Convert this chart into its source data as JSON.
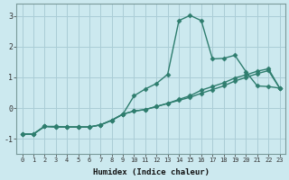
{
  "xlabel": "Humidex (Indice chaleur)",
  "background_color": "#cce9ef",
  "line_color": "#2e7d6e",
  "grid_color": "#aacdd6",
  "xlim": [
    -0.5,
    23.5
  ],
  "ylim": [
    -1.5,
    3.4
  ],
  "yticks": [
    -1,
    0,
    1,
    2,
    3
  ],
  "xticks": [
    0,
    1,
    2,
    3,
    4,
    5,
    6,
    7,
    8,
    9,
    10,
    11,
    12,
    13,
    14,
    15,
    16,
    17,
    18,
    19,
    20,
    21,
    22,
    23
  ],
  "series1_x": [
    0,
    1,
    2,
    3,
    4,
    5,
    6,
    7,
    8,
    9,
    10,
    11,
    12,
    13,
    14,
    15,
    16,
    17,
    18,
    19,
    20,
    21,
    22,
    23
  ],
  "series1_y": [
    -0.85,
    -0.85,
    -0.6,
    -0.6,
    -0.62,
    -0.62,
    -0.62,
    -0.55,
    -0.4,
    -0.2,
    0.4,
    0.62,
    0.8,
    1.1,
    2.85,
    3.02,
    2.85,
    1.6,
    1.62,
    1.72,
    1.18,
    0.72,
    0.7,
    0.65
  ],
  "series2_x": [
    0,
    1,
    2,
    3,
    4,
    5,
    6,
    7,
    8,
    9,
    10,
    11,
    12,
    13,
    14,
    15,
    16,
    17,
    18,
    19,
    20,
    21,
    22,
    23
  ],
  "series2_y": [
    -0.85,
    -0.85,
    -0.6,
    -0.62,
    -0.62,
    -0.62,
    -0.62,
    -0.55,
    -0.4,
    -0.2,
    -0.1,
    -0.05,
    0.05,
    0.15,
    0.28,
    0.4,
    0.58,
    0.7,
    0.82,
    0.98,
    1.08,
    1.2,
    1.28,
    0.65
  ],
  "series3_x": [
    0,
    1,
    2,
    3,
    4,
    5,
    6,
    7,
    8,
    9,
    10,
    11,
    12,
    13,
    14,
    15,
    16,
    17,
    18,
    19,
    20,
    21,
    22,
    23
  ],
  "series3_y": [
    -0.85,
    -0.85,
    -0.6,
    -0.62,
    -0.62,
    -0.62,
    -0.62,
    -0.55,
    -0.4,
    -0.2,
    -0.1,
    -0.05,
    0.05,
    0.15,
    0.25,
    0.35,
    0.48,
    0.6,
    0.72,
    0.88,
    1.0,
    1.12,
    1.22,
    0.65
  ]
}
